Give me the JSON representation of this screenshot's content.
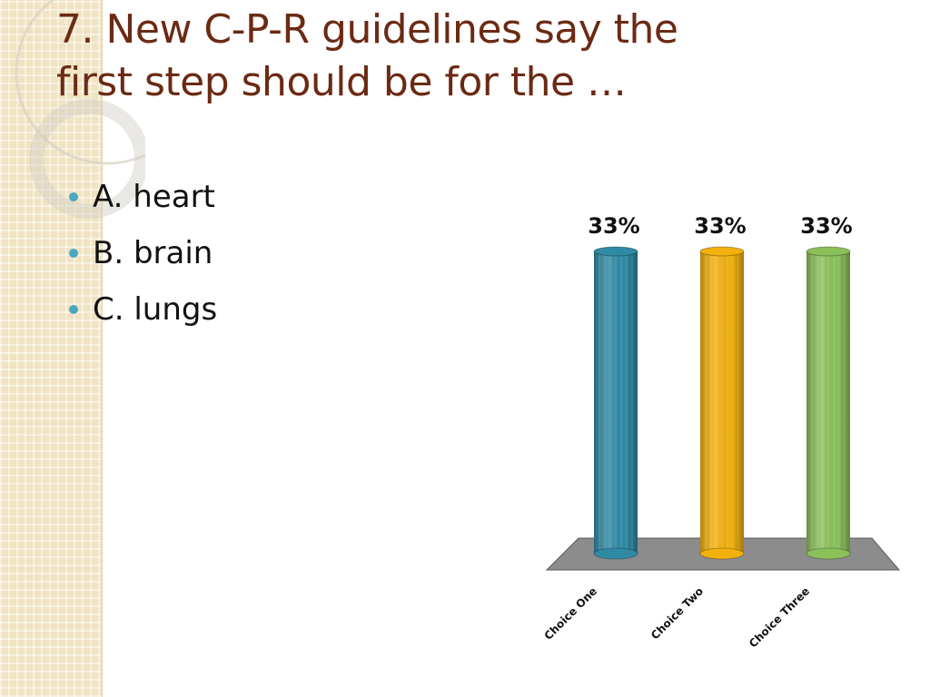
{
  "slide": {
    "title_lines": [
      "7.  New C-P-R guidelines say the",
      "first step should be for the …"
    ],
    "options": [
      "A.  heart",
      "B.  brain",
      "C.  lungs"
    ]
  },
  "colors": {
    "title": "#6b2a14",
    "bullet": "#4aa7c0",
    "floor": "#8c8c8c"
  },
  "chart_data": {
    "type": "bar",
    "categories": [
      "Choice One",
      "Choice Two",
      "Choice Three"
    ],
    "values": [
      33,
      33,
      33
    ],
    "data_labels": [
      "33%",
      "33%",
      "33%"
    ],
    "ylim": [
      0,
      33
    ],
    "colors": [
      "#2f8aa5",
      "#f2b10d",
      "#8cc15a"
    ],
    "grid": false,
    "legend": "none"
  }
}
